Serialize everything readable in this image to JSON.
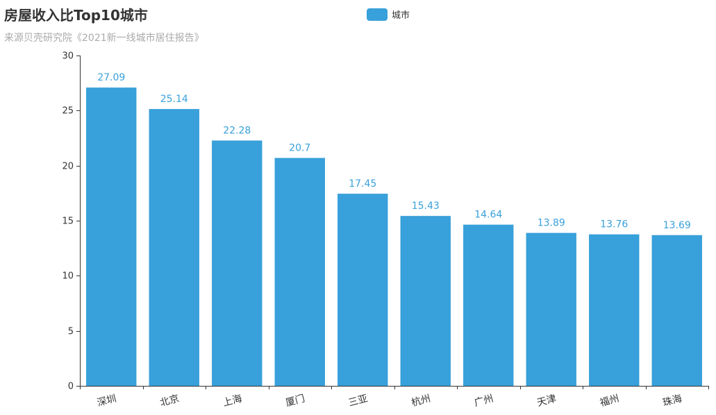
{
  "chart_data": {
    "type": "bar",
    "title": "房屋收入比Top10城市",
    "subtitle": "来源贝壳研究院《2021新一线城市居住报告》",
    "categories": [
      "深圳",
      "北京",
      "上海",
      "厦门",
      "三亚",
      "杭州",
      "广州",
      "天津",
      "福州",
      "珠海"
    ],
    "series": [
      {
        "name": "城市",
        "values": [
          27.09,
          25.14,
          22.28,
          20.7,
          17.45,
          15.43,
          14.64,
          13.89,
          13.76,
          13.69
        ]
      }
    ],
    "ylim": [
      0,
      30
    ],
    "yticks": [
      "0",
      "5",
      "10",
      "15",
      "20",
      "25",
      "30"
    ],
    "xlabel": "",
    "ylabel": "",
    "grid": false,
    "legend_position": "top-center",
    "data_labels": true,
    "x_tick_label_rotation_deg": -15,
    "colors": {
      "bar": "#38A0DA",
      "label": "#38A0DA",
      "axis": "#333333"
    }
  }
}
